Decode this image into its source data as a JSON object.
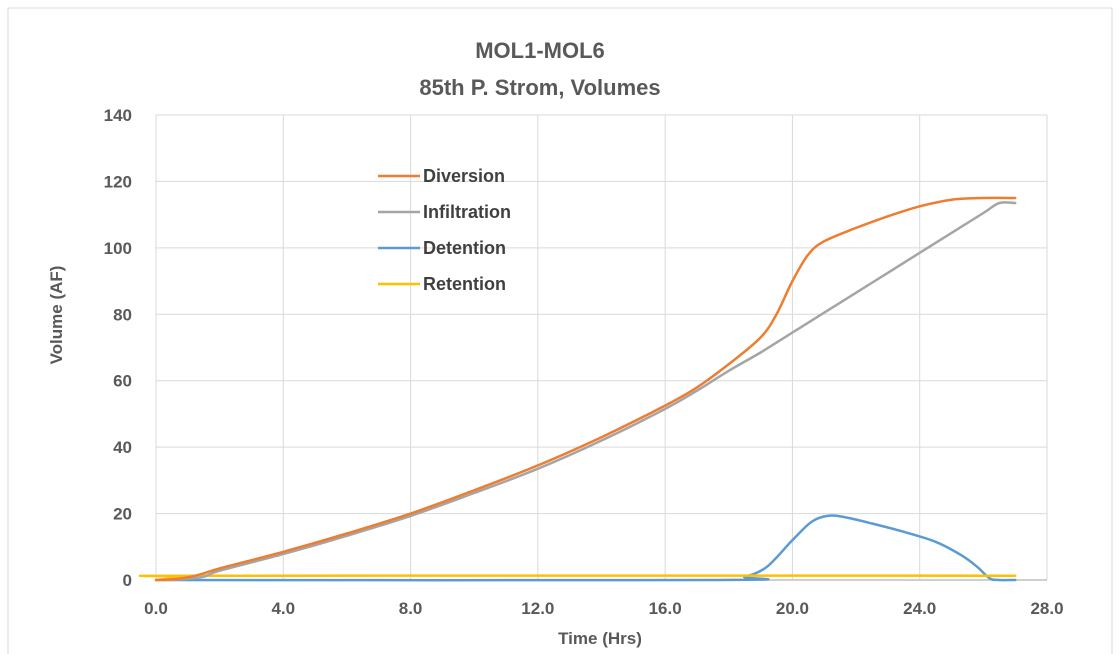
{
  "chart_data": {
    "type": "line",
    "title": "MOL1-MOL6",
    "subtitle": "85th P. Strom, Volumes",
    "xlabel": "Time (Hrs)",
    "ylabel": "Volume (AF)",
    "xlim": [
      0,
      28
    ],
    "ylim": [
      0,
      140
    ],
    "x_ticks": [
      0,
      4,
      8,
      12,
      16,
      20,
      24,
      28
    ],
    "x_tick_labels": [
      "0.0",
      "4.0",
      "8.0",
      "12.0",
      "16.0",
      "20.0",
      "24.0",
      "28.0"
    ],
    "y_ticks": [
      0,
      20,
      40,
      60,
      80,
      100,
      120,
      140
    ],
    "y_tick_labels": [
      "0",
      "20",
      "40",
      "60",
      "80",
      "100",
      "120",
      "140"
    ],
    "grid": true,
    "legend_position": "upper-left-inside",
    "series": [
      {
        "name": "Diversion",
        "color": "#ED7D31",
        "points": [
          [
            0,
            0
          ],
          [
            0.5,
            0.2
          ],
          [
            1,
            0.8
          ],
          [
            1.5,
            2
          ],
          [
            2,
            3.5
          ],
          [
            4,
            8.5
          ],
          [
            6,
            14
          ],
          [
            8,
            20
          ],
          [
            10,
            27
          ],
          [
            12,
            34.5
          ],
          [
            14,
            43
          ],
          [
            16,
            52.5
          ],
          [
            17,
            58
          ],
          [
            18,
            65
          ],
          [
            19,
            73
          ],
          [
            19.5,
            80
          ],
          [
            20,
            90
          ],
          [
            20.5,
            98
          ],
          [
            21,
            102
          ],
          [
            22,
            106
          ],
          [
            23,
            109.5
          ],
          [
            24,
            112.5
          ],
          [
            25,
            114.5
          ],
          [
            26,
            115
          ],
          [
            27,
            115
          ]
        ]
      },
      {
        "name": "Infiltration",
        "color": "#A5A5A5",
        "points": [
          [
            0,
            0
          ],
          [
            0.5,
            0.1
          ],
          [
            1,
            0.4
          ],
          [
            1.5,
            1
          ],
          [
            2,
            2.8
          ],
          [
            4,
            7.8
          ],
          [
            6,
            13.3
          ],
          [
            8,
            19.3
          ],
          [
            10,
            26.2
          ],
          [
            12,
            33.5
          ],
          [
            14,
            42
          ],
          [
            16,
            51.5
          ],
          [
            17,
            57
          ],
          [
            18,
            63
          ],
          [
            19,
            68.5
          ],
          [
            20,
            74.5
          ],
          [
            21,
            80.5
          ],
          [
            22,
            86.5
          ],
          [
            23,
            92.5
          ],
          [
            24,
            98.5
          ],
          [
            25,
            104.5
          ],
          [
            26,
            110.5
          ],
          [
            26.5,
            113.5
          ],
          [
            27,
            113.5
          ]
        ]
      },
      {
        "name": "Detention",
        "color": "#5B9BD5",
        "points": [
          [
            0,
            0
          ],
          [
            17.7,
            0
          ],
          [
            18.5,
            1
          ],
          [
            19.2,
            4
          ],
          [
            20,
            12
          ],
          [
            20.6,
            17.5
          ],
          [
            21.1,
            19.3
          ],
          [
            21.6,
            19
          ],
          [
            22.5,
            17
          ],
          [
            23.5,
            14.5
          ],
          [
            24.5,
            11.5
          ],
          [
            25.3,
            7.5
          ],
          [
            25.8,
            4
          ],
          [
            26.2,
            0.5
          ],
          [
            26.5,
            0
          ],
          [
            27,
            0
          ]
        ]
      },
      {
        "name": "Retention",
        "color": "#FFC000",
        "points": [
          [
            0,
            0
          ],
          [
            1,
            1
          ],
          [
            1.5,
            1.3
          ],
          [
            27,
            1.3
          ]
        ]
      }
    ]
  }
}
